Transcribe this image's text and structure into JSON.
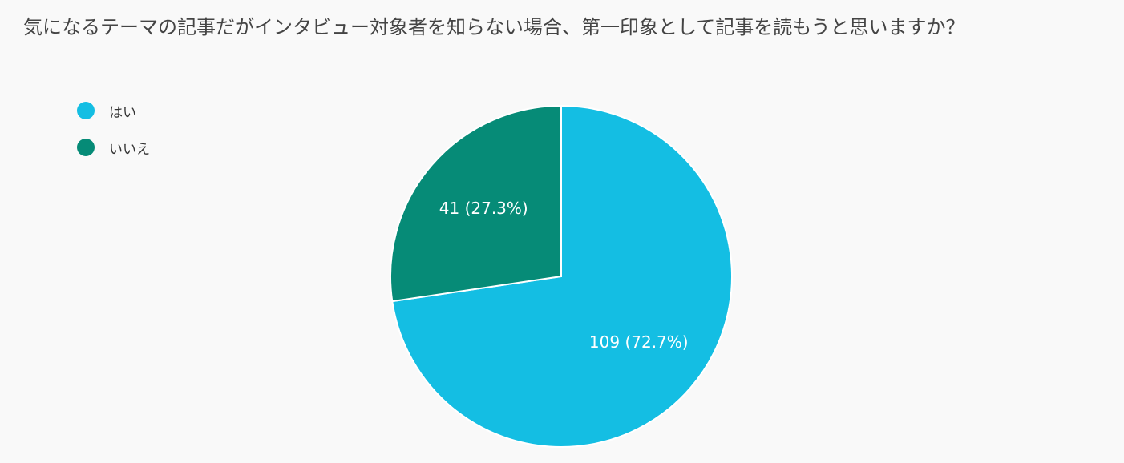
{
  "chart_data": {
    "type": "pie",
    "title": "気になるテーマの記事だがインタビュー対象者を知らない場合、第一印象として記事を読もうと思いますか？",
    "slices": [
      {
        "label": "はい",
        "value": 109,
        "percent": "72.7%",
        "color": "#14bee3"
      },
      {
        "label": "いいえ",
        "value": 41,
        "percent": "27.3%",
        "color": "#068b77"
      }
    ],
    "legend_position": "top-left",
    "start_angle": "12 o'clock, clockwise"
  },
  "colors": {
    "background": "#f9f9f9",
    "slice_border": "#ffffff"
  }
}
